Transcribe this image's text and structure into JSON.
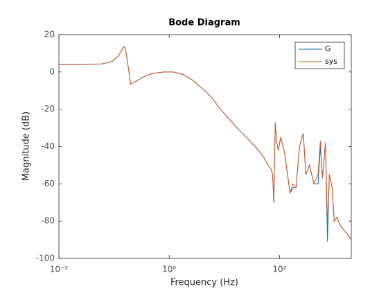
{
  "chart_data": {
    "type": "line",
    "title": "Bode Diagram",
    "x_label": "Frequency  (Hz)",
    "y_label": "Magnitude (dB)",
    "x": [
      0.01,
      0.03,
      0.06,
      0.09,
      0.12,
      0.15,
      0.16,
      0.18,
      0.2,
      0.25,
      0.35,
      0.5,
      0.8,
      1.2,
      1.8,
      2.7,
      4.4,
      6,
      8.5,
      12,
      17,
      25,
      36,
      50,
      62,
      70,
      75,
      79,
      82,
      84,
      88,
      95,
      105,
      123,
      140,
      155,
      175,
      200,
      230,
      270,
      300,
      350,
      420,
      500,
      550,
      600,
      680,
      740,
      800,
      900,
      980,
      1100,
      1300,
      1600,
      2000
    ],
    "series": [
      {
        "name": "G",
        "color": "#0072bd",
        "values": [
          4,
          4,
          4.3,
          5.5,
          8.5,
          13.5,
          13,
          3,
          -6.5,
          -5,
          -2.5,
          -0.8,
          0,
          0,
          -1.5,
          -4.5,
          -10,
          -14,
          -20,
          -25,
          -30,
          -35,
          -40,
          -45,
          -50,
          -52,
          -55,
          -70,
          -40,
          -27,
          -37,
          -42,
          -35,
          -43,
          -55,
          -65,
          -62,
          -62,
          -40,
          -33,
          -55,
          -50,
          -60,
          -60,
          -40,
          -57,
          -38,
          -91,
          -55,
          -62,
          -80,
          -78,
          -83,
          -86,
          -90
        ]
      },
      {
        "name": "sys",
        "color": "#d95319",
        "values": [
          4,
          4,
          4.3,
          5.5,
          8.5,
          13.5,
          13,
          3,
          -6.5,
          -5,
          -2.5,
          -0.8,
          0,
          0,
          -1.5,
          -4.5,
          -10,
          -14,
          -20,
          -25,
          -30,
          -35,
          -40,
          -45,
          -50,
          -52,
          -55,
          -70,
          -40,
          -27,
          -37,
          -42,
          -35,
          -43,
          -55,
          -65,
          -60,
          -62,
          -40,
          -33,
          -55,
          -50,
          -60,
          -55,
          -37,
          -57,
          -38,
          -82,
          -55,
          -62,
          -80,
          -78,
          -83,
          -86,
          -90
        ]
      }
    ],
    "xscale": "log",
    "xlim": [
      0.01,
      2000
    ],
    "xticks": [
      {
        "value": 0.01,
        "label": "10⁻²"
      },
      {
        "value": 1,
        "label": "10⁰"
      },
      {
        "value": 100,
        "label": "10²"
      }
    ],
    "ylim": [
      -100,
      20
    ],
    "yticks": [
      -100,
      -80,
      -60,
      -40,
      -20,
      0,
      20
    ],
    "grid": false,
    "legend": "upper right"
  }
}
